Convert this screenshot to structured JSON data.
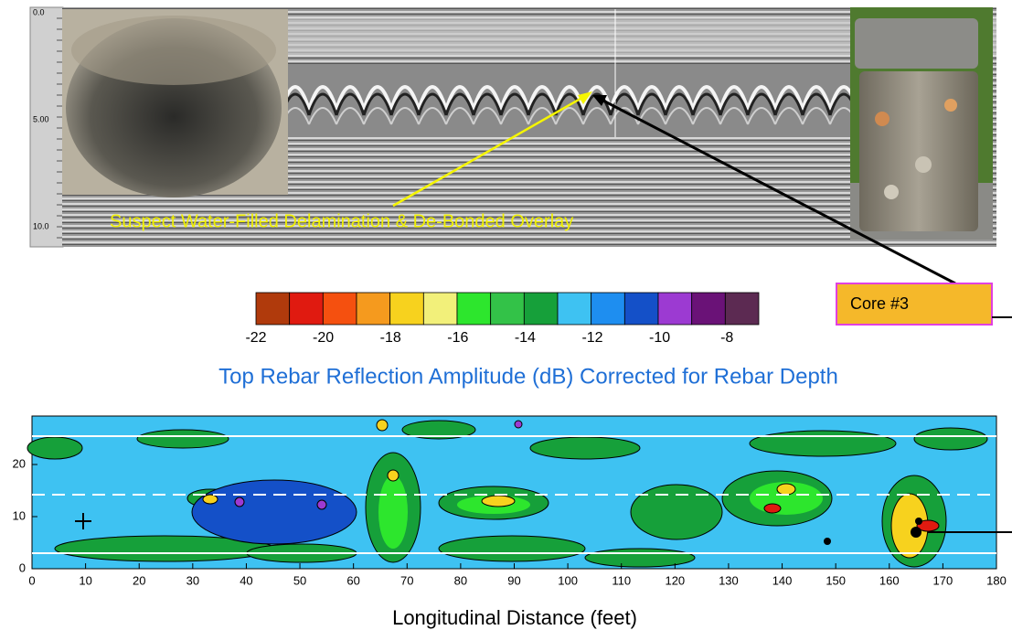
{
  "radargram": {
    "depth_ticks": [
      "0.0",
      "5.00",
      "10.0"
    ],
    "annotation": "Suspect Water-Filled Delamination & De-Bonded Overlay"
  },
  "callout": "Core #3",
  "colorbar": {
    "colors": [
      "#b03a0c",
      "#e01a10",
      "#f5500f",
      "#f59a1e",
      "#f7d21e",
      "#f2f07a",
      "#2de62d",
      "#33c248",
      "#16a03a",
      "#3ec2f2",
      "#1e8ef0",
      "#1450c8",
      "#9c3ad2",
      "#6a1277",
      "#5c2a52"
    ],
    "labels": [
      "-22",
      "-20",
      "-18",
      "-16",
      "-14",
      "-12",
      "-10",
      "-8"
    ]
  },
  "map": {
    "title": "Top Rebar Reflection Amplitude (dB) Corrected for Rebar Depth",
    "yticks": [
      "0",
      "10",
      "20"
    ],
    "xticks": [
      "0",
      "10",
      "20",
      "30",
      "40",
      "50",
      "60",
      "70",
      "80",
      "90",
      "100",
      "110",
      "120",
      "130",
      "140",
      "150",
      "160",
      "170",
      "180"
    ],
    "xlabel": "Longitudinal Distance (feet)"
  }
}
